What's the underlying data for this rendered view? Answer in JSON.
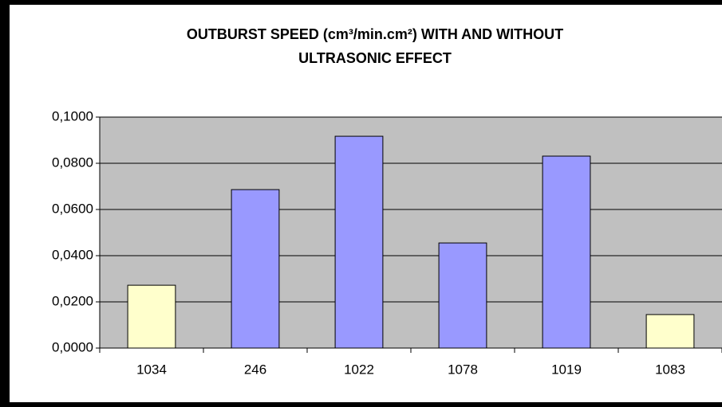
{
  "chart_data": {
    "type": "bar",
    "title": [
      "OUTBURST SPEED (cm³/min.cm²) WITH AND WITHOUT",
      "ULTRASONIC EFFECT"
    ],
    "categories": [
      "1034",
      "246",
      "1022",
      "1078",
      "1019",
      "1083"
    ],
    "values": [
      0.0272,
      0.0686,
      0.0917,
      0.0455,
      0.0831,
      0.0145
    ],
    "colors": [
      "#ffffcc",
      "#9999ff",
      "#9999ff",
      "#9999ff",
      "#9999ff",
      "#ffffcc"
    ],
    "ylim": [
      0,
      0.1
    ],
    "yticks": [
      {
        "value": 0,
        "label": "0,0000"
      },
      {
        "value": 0.02,
        "label": "0,0200"
      },
      {
        "value": 0.04,
        "label": "0,0400"
      },
      {
        "value": 0.06,
        "label": "0,0600"
      },
      {
        "value": 0.08,
        "label": "0,0800"
      },
      {
        "value": 0.1,
        "label": "0,1000"
      }
    ],
    "grid": true
  }
}
